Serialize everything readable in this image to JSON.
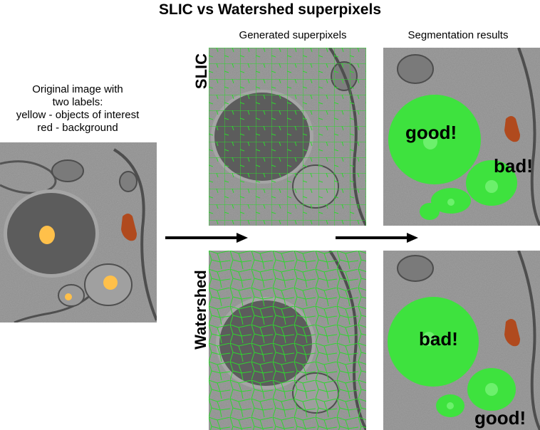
{
  "title": "SLIC vs Watershed superpixels",
  "headers": {
    "generated": "Generated superpixels",
    "segmentation": "Segmentation results"
  },
  "original_caption": {
    "line1": "Original image with",
    "line2": "two labels:",
    "line3": "yellow - objects of interest",
    "line4": "red -  background"
  },
  "row_labels": {
    "slic": "SLIC",
    "watershed": "Watershed"
  },
  "results": {
    "slic_good": "good!",
    "slic_bad": "bad!",
    "watershed_bad": "bad!",
    "watershed_good": "good!"
  },
  "colors": {
    "background_gray": "#8c8c8c",
    "cell_dark": "#5e5e5e",
    "label_yellow": "#ffc04a",
    "label_red": "#b04a1e",
    "superpixel_green": "#2ed62e",
    "segment_green": "#3ee23e"
  }
}
